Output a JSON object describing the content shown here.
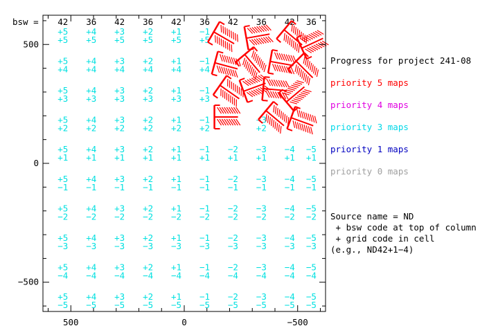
{
  "chart_data": {
    "type": "scatter",
    "x_axis": {
      "range": [
        623,
        -623
      ],
      "ticks": [
        500,
        0,
        -500
      ],
      "tick_labels": [
        "500",
        "0",
        "−500"
      ]
    },
    "y_axis": {
      "range": [
        -623,
        623
      ],
      "ticks": [
        500,
        0,
        -500
      ],
      "tick_labels": [
        "500",
        "0",
        "−500"
      ]
    },
    "bsw_header_label": "bsw =",
    "bsw_codes": [
      42,
      36,
      42,
      36,
      42,
      36,
      42,
      36,
      42,
      36
    ],
    "column_x": [
      535,
      410,
      285,
      160,
      35,
      -90,
      -215,
      -340,
      -465,
      -560
    ],
    "column_sign_codes": [
      "+5",
      "+4",
      "+3",
      "+2",
      "+1",
      "−1",
      "−2",
      "−3",
      "−4",
      "−5"
    ],
    "row_y": [
      542,
      418,
      294,
      170,
      46,
      -78,
      -202,
      -326,
      -450,
      -574
    ],
    "row_grid_codes": [
      "+5",
      "+4",
      "+3",
      "+2",
      "+1",
      "−1",
      "−2",
      "−3",
      "−4",
      "−5"
    ],
    "hidden_cells": [
      [
        0,
        6
      ],
      [
        0,
        7
      ],
      [
        0,
        8
      ],
      [
        0,
        9
      ],
      [
        1,
        6
      ],
      [
        1,
        7
      ],
      [
        1,
        8
      ],
      [
        1,
        9
      ],
      [
        2,
        6
      ],
      [
        2,
        7
      ],
      [
        2,
        8
      ],
      [
        2,
        9
      ],
      [
        3,
        6
      ],
      [
        3,
        8
      ],
      [
        3,
        9
      ]
    ],
    "cell_color": "#00e0e0",
    "observation_color": "#ff0000",
    "observations": [
      {
        "x": -175,
        "y": 528,
        "angle": 30
      },
      {
        "x": -325,
        "y": 535,
        "angle": -10
      },
      {
        "x": -480,
        "y": 530,
        "angle": 40
      },
      {
        "x": -565,
        "y": 505,
        "angle": -25
      },
      {
        "x": -185,
        "y": 410,
        "angle": 15
      },
      {
        "x": -300,
        "y": 420,
        "angle": 50
      },
      {
        "x": -430,
        "y": 420,
        "angle": 10
      },
      {
        "x": -530,
        "y": 395,
        "angle": 45
      },
      {
        "x": -200,
        "y": 300,
        "angle": 35
      },
      {
        "x": -310,
        "y": 320,
        "angle": -20
      },
      {
        "x": -400,
        "y": 310,
        "angle": 5
      },
      {
        "x": -490,
        "y": 290,
        "angle": -40
      },
      {
        "x": -185,
        "y": 195,
        "angle": 0
      },
      {
        "x": -400,
        "y": 190,
        "angle": 40
      },
      {
        "x": -520,
        "y": 175,
        "angle": 20
      }
    ],
    "legend": {
      "title": "Progress for project 241-08",
      "entries": [
        {
          "label": "priority 5 maps",
          "color": "#ff0000"
        },
        {
          "label": "priority 4 maps",
          "color": "#e000e0"
        },
        {
          "label": "priority 3 maps",
          "color": "#00d8e8"
        },
        {
          "label": "priority 1 maps",
          "color": "#0000c0"
        },
        {
          "label": "priority 0 maps",
          "color": "#a0a0a0"
        }
      ]
    },
    "notes": [
      "Source name = ND",
      " + bsw code at top of column",
      " + grid code in cell",
      "(e.g., ND42+1−4)"
    ]
  }
}
